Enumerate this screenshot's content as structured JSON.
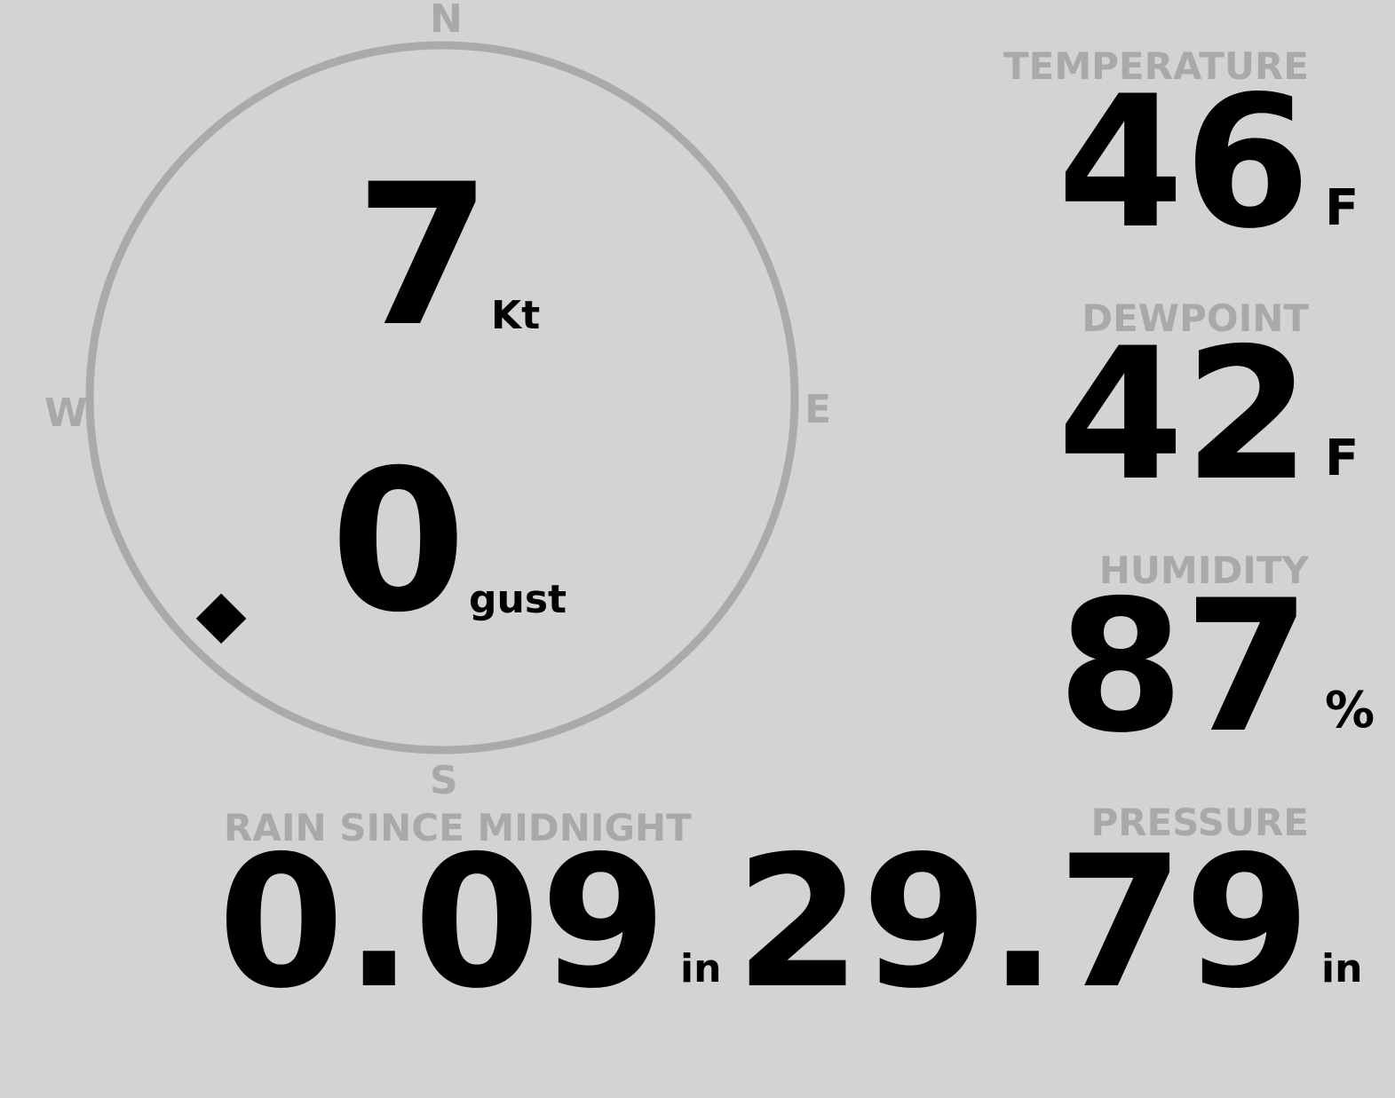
{
  "wind": {
    "speed": "7",
    "speed_unit": "Kt",
    "gust": "0",
    "gust_unit": "gust",
    "direction_deg": 225,
    "cardinals": {
      "n": "N",
      "e": "E",
      "s": "S",
      "w": "W"
    }
  },
  "temperature": {
    "label": "TEMPERATURE",
    "value": "46",
    "unit": "F"
  },
  "dewpoint": {
    "label": "DEWPOINT",
    "value": "42",
    "unit": "F"
  },
  "humidity": {
    "label": "HUMIDITY",
    "value": "87",
    "unit": "%"
  },
  "rain": {
    "label": "RAIN SINCE MIDNIGHT",
    "value": "0.09",
    "unit": "in"
  },
  "pressure": {
    "label": "PRESSURE",
    "value": "29.79",
    "unit": "in"
  },
  "colors": {
    "background": "#d3d3d3",
    "label": "#a9a9a9",
    "value": "#000000",
    "ring": "#aaaaaa"
  }
}
